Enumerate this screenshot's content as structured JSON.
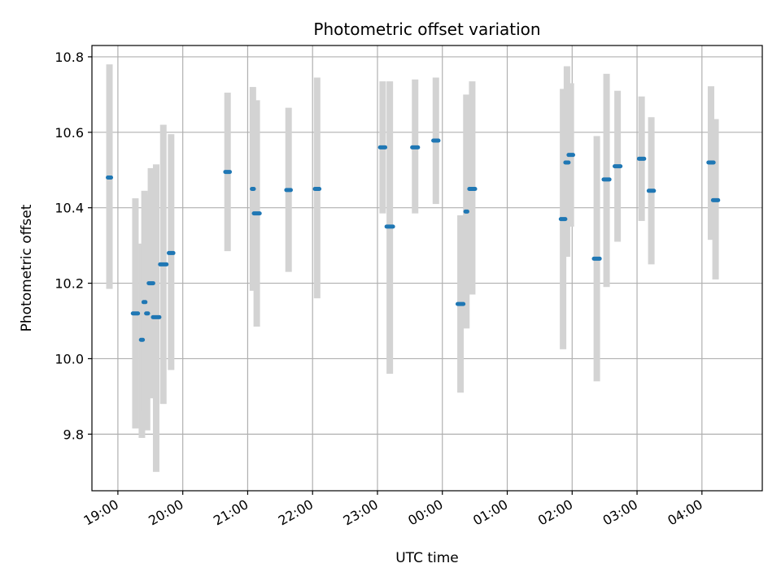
{
  "chart_data": {
    "type": "scatter",
    "title": "Photometric offset variation",
    "xlabel": "UTC time",
    "ylabel": "Photometric offset",
    "x_tick_labels": [
      "19:00",
      "20:00",
      "21:00",
      "22:00",
      "23:00",
      "00:00",
      "01:00",
      "02:00",
      "03:00",
      "04:00"
    ],
    "y_ticks": [
      9.8,
      10.0,
      10.2,
      10.4,
      10.6,
      10.8
    ],
    "y_tick_labels": [
      "9.8",
      "10.0",
      "10.2",
      "10.4",
      "10.6",
      "10.8"
    ],
    "ylim": [
      9.65,
      10.83
    ],
    "xlim_hours": [
      18.6,
      28.93
    ],
    "grid": true,
    "colors": {
      "marker": "#1f77b4",
      "errorbar": "#d3d3d3",
      "grid": "#b0b0b0"
    },
    "points": [
      {
        "t": 18.87,
        "w": 0.05,
        "y": 10.48,
        "lo": 10.185,
        "hi": 10.78
      },
      {
        "t": 19.27,
        "w": 0.08,
        "y": 10.12,
        "lo": 9.815,
        "hi": 10.425
      },
      {
        "t": 19.37,
        "w": 0.03,
        "y": 10.05,
        "lo": 9.79,
        "hi": 10.305
      },
      {
        "t": 19.41,
        "w": 0.03,
        "y": 10.15,
        "lo": 9.86,
        "hi": 10.445
      },
      {
        "t": 19.45,
        "w": 0.03,
        "y": 10.12,
        "lo": 9.81,
        "hi": 10.435
      },
      {
        "t": 19.51,
        "w": 0.07,
        "y": 10.2,
        "lo": 9.895,
        "hi": 10.505
      },
      {
        "t": 19.59,
        "w": 0.1,
        "y": 10.11,
        "lo": 9.7,
        "hi": 10.515
      },
      {
        "t": 19.7,
        "w": 0.1,
        "y": 10.25,
        "lo": 9.88,
        "hi": 10.62
      },
      {
        "t": 19.82,
        "w": 0.07,
        "y": 10.28,
        "lo": 9.97,
        "hi": 10.595
      },
      {
        "t": 20.69,
        "w": 0.07,
        "y": 10.495,
        "lo": 10.285,
        "hi": 10.705
      },
      {
        "t": 21.08,
        "w": 0.03,
        "y": 10.45,
        "lo": 10.18,
        "hi": 10.72
      },
      {
        "t": 21.14,
        "w": 0.09,
        "y": 10.385,
        "lo": 10.085,
        "hi": 10.685
      },
      {
        "t": 21.63,
        "w": 0.07,
        "y": 10.447,
        "lo": 10.23,
        "hi": 10.665
      },
      {
        "t": 22.07,
        "w": 0.07,
        "y": 10.45,
        "lo": 10.16,
        "hi": 10.745
      },
      {
        "t": 23.08,
        "w": 0.08,
        "y": 10.56,
        "lo": 10.385,
        "hi": 10.735
      },
      {
        "t": 23.19,
        "w": 0.1,
        "y": 10.35,
        "lo": 9.96,
        "hi": 10.735
      },
      {
        "t": 23.58,
        "w": 0.09,
        "y": 10.56,
        "lo": 10.385,
        "hi": 10.74
      },
      {
        "t": 23.9,
        "w": 0.08,
        "y": 10.578,
        "lo": 10.41,
        "hi": 10.745
      },
      {
        "t": 24.28,
        "w": 0.09,
        "y": 10.145,
        "lo": 9.91,
        "hi": 10.38
      },
      {
        "t": 24.37,
        "w": 0.03,
        "y": 10.39,
        "lo": 10.08,
        "hi": 10.7
      },
      {
        "t": 24.46,
        "w": 0.09,
        "y": 10.45,
        "lo": 10.17,
        "hi": 10.735
      },
      {
        "t": 25.86,
        "w": 0.07,
        "y": 10.37,
        "lo": 10.025,
        "hi": 10.715
      },
      {
        "t": 25.92,
        "w": 0.05,
        "y": 10.52,
        "lo": 10.27,
        "hi": 10.775
      },
      {
        "t": 25.98,
        "w": 0.07,
        "y": 10.54,
        "lo": 10.35,
        "hi": 10.73
      },
      {
        "t": 26.38,
        "w": 0.09,
        "y": 10.265,
        "lo": 9.94,
        "hi": 10.59
      },
      {
        "t": 26.53,
        "w": 0.09,
        "y": 10.475,
        "lo": 10.19,
        "hi": 10.755
      },
      {
        "t": 26.7,
        "w": 0.09,
        "y": 10.51,
        "lo": 10.31,
        "hi": 10.71
      },
      {
        "t": 27.07,
        "w": 0.08,
        "y": 10.53,
        "lo": 10.365,
        "hi": 10.695
      },
      {
        "t": 27.22,
        "w": 0.08,
        "y": 10.445,
        "lo": 10.25,
        "hi": 10.64
      },
      {
        "t": 28.14,
        "w": 0.08,
        "y": 10.52,
        "lo": 10.315,
        "hi": 10.722
      },
      {
        "t": 28.21,
        "w": 0.08,
        "y": 10.42,
        "lo": 10.21,
        "hi": 10.635
      }
    ]
  }
}
